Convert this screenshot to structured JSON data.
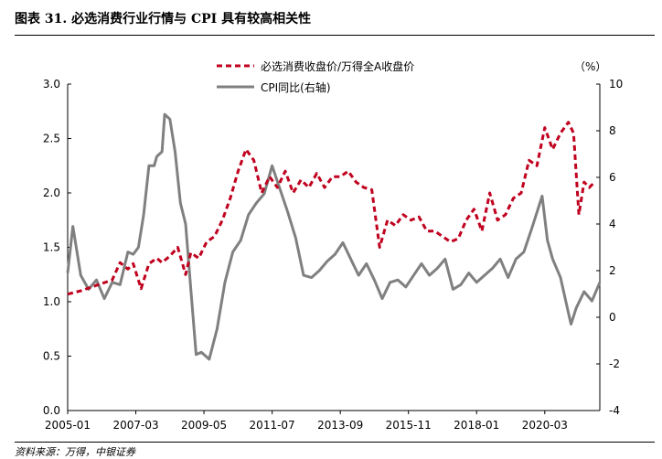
{
  "figure": {
    "title": "图表 31. 必选消费行业行情与 CPI 具有较高相关性",
    "source": "资料来源：万得，中银证券"
  },
  "chart_data": {
    "type": "line",
    "x_tick_labels": [
      "2005-01",
      "2007-03",
      "2009-05",
      "2011-07",
      "2013-09",
      "2015-11",
      "2018-01",
      "2020-03"
    ],
    "x_range": [
      "2005-01",
      "2021-12"
    ],
    "y_left": {
      "ticks": [
        "0.0",
        "0.5",
        "1.0",
        "1.5",
        "2.0",
        "2.5",
        "3.0"
      ],
      "range": [
        0,
        3
      ]
    },
    "y_right": {
      "unit_label": "（%）",
      "ticks": [
        "-4",
        "-2",
        "0",
        "2",
        "4",
        "6",
        "8",
        "10"
      ],
      "range": [
        -4,
        10
      ]
    },
    "grid": false,
    "legend_position": "top-center",
    "series": [
      {
        "name": "必选消费收盘价/万得全A收盘价",
        "axis": "left",
        "color": "#C0001E",
        "style": "dashed",
        "x": [
          "2005-01",
          "2005-06",
          "2005-12",
          "2006-06",
          "2006-09",
          "2006-12",
          "2007-02",
          "2007-05",
          "2007-08",
          "2007-11",
          "2008-01",
          "2008-04",
          "2008-07",
          "2008-10",
          "2008-12",
          "2009-03",
          "2009-06",
          "2009-09",
          "2009-12",
          "2010-03",
          "2010-06",
          "2010-09",
          "2010-12",
          "2011-03",
          "2011-06",
          "2011-09",
          "2011-12",
          "2012-03",
          "2012-06",
          "2012-09",
          "2012-12",
          "2013-03",
          "2013-06",
          "2013-09",
          "2013-12",
          "2014-03",
          "2014-06",
          "2014-09",
          "2014-12",
          "2015-03",
          "2015-06",
          "2015-09",
          "2015-12",
          "2016-03",
          "2016-06",
          "2016-09",
          "2016-12",
          "2017-03",
          "2017-06",
          "2017-09",
          "2017-12",
          "2018-03",
          "2018-06",
          "2018-09",
          "2018-12",
          "2019-03",
          "2019-06",
          "2019-09",
          "2019-12",
          "2020-03",
          "2020-06",
          "2020-09",
          "2020-12",
          "2021-02",
          "2021-04",
          "2021-06",
          "2021-08",
          "2021-10"
        ],
        "y": [
          1.07,
          1.1,
          1.15,
          1.2,
          1.36,
          1.3,
          1.35,
          1.12,
          1.35,
          1.4,
          1.36,
          1.42,
          1.5,
          1.25,
          1.45,
          1.4,
          1.55,
          1.6,
          1.75,
          1.95,
          2.2,
          2.4,
          2.3,
          2.0,
          2.15,
          2.05,
          2.2,
          2.0,
          2.12,
          2.05,
          2.18,
          2.05,
          2.15,
          2.15,
          2.2,
          2.1,
          2.05,
          2.03,
          1.5,
          1.75,
          1.7,
          1.8,
          1.75,
          1.78,
          1.65,
          1.65,
          1.6,
          1.55,
          1.58,
          1.75,
          1.85,
          1.65,
          2.0,
          1.75,
          1.8,
          1.95,
          2.0,
          2.3,
          2.25,
          2.6,
          2.4,
          2.55,
          2.65,
          2.55,
          1.8,
          2.1,
          2.05,
          2.1
        ]
      },
      {
        "name": "CPI同比(右轴)",
        "axis": "right",
        "color": "#808080",
        "style": "solid",
        "x": [
          "2005-01",
          "2005-03",
          "2005-06",
          "2005-09",
          "2005-12",
          "2006-03",
          "2006-06",
          "2006-09",
          "2006-12",
          "2007-02",
          "2007-04",
          "2007-06",
          "2007-08",
          "2007-10",
          "2007-11",
          "2008-01",
          "2008-02",
          "2008-04",
          "2008-06",
          "2008-08",
          "2008-10",
          "2008-12",
          "2009-02",
          "2009-04",
          "2009-07",
          "2009-10",
          "2010-01",
          "2010-04",
          "2010-07",
          "2010-10",
          "2011-01",
          "2011-04",
          "2011-07",
          "2011-10",
          "2012-01",
          "2012-04",
          "2012-07",
          "2012-10",
          "2013-01",
          "2013-04",
          "2013-07",
          "2013-10",
          "2014-01",
          "2014-04",
          "2014-07",
          "2014-10",
          "2015-01",
          "2015-04",
          "2015-07",
          "2015-10",
          "2016-01",
          "2016-04",
          "2016-07",
          "2016-10",
          "2017-01",
          "2017-04",
          "2017-07",
          "2017-10",
          "2018-01",
          "2018-04",
          "2018-07",
          "2018-10",
          "2019-01",
          "2019-04",
          "2019-07",
          "2019-10",
          "2019-12",
          "2020-02",
          "2020-04",
          "2020-06",
          "2020-09",
          "2020-12",
          "2021-01",
          "2021-03",
          "2021-06",
          "2021-09",
          "2021-12"
        ],
        "y": [
          1.9,
          3.9,
          1.8,
          1.2,
          1.6,
          0.8,
          1.5,
          1.4,
          2.8,
          2.7,
          3.0,
          4.4,
          6.5,
          6.5,
          6.9,
          7.1,
          8.7,
          8.5,
          7.1,
          4.9,
          4.0,
          1.2,
          -1.6,
          -1.5,
          -1.8,
          -0.5,
          1.5,
          2.8,
          3.3,
          4.4,
          4.9,
          5.3,
          6.5,
          5.5,
          4.5,
          3.4,
          1.8,
          1.7,
          2.0,
          2.4,
          2.7,
          3.2,
          2.5,
          1.8,
          2.3,
          1.6,
          0.8,
          1.5,
          1.6,
          1.3,
          1.8,
          2.3,
          1.8,
          2.1,
          2.5,
          1.2,
          1.4,
          1.9,
          1.5,
          1.8,
          2.1,
          2.5,
          1.7,
          2.5,
          2.8,
          3.8,
          4.5,
          5.2,
          3.3,
          2.5,
          1.7,
          0.2,
          -0.3,
          0.4,
          1.1,
          0.7,
          1.5
        ]
      }
    ]
  }
}
